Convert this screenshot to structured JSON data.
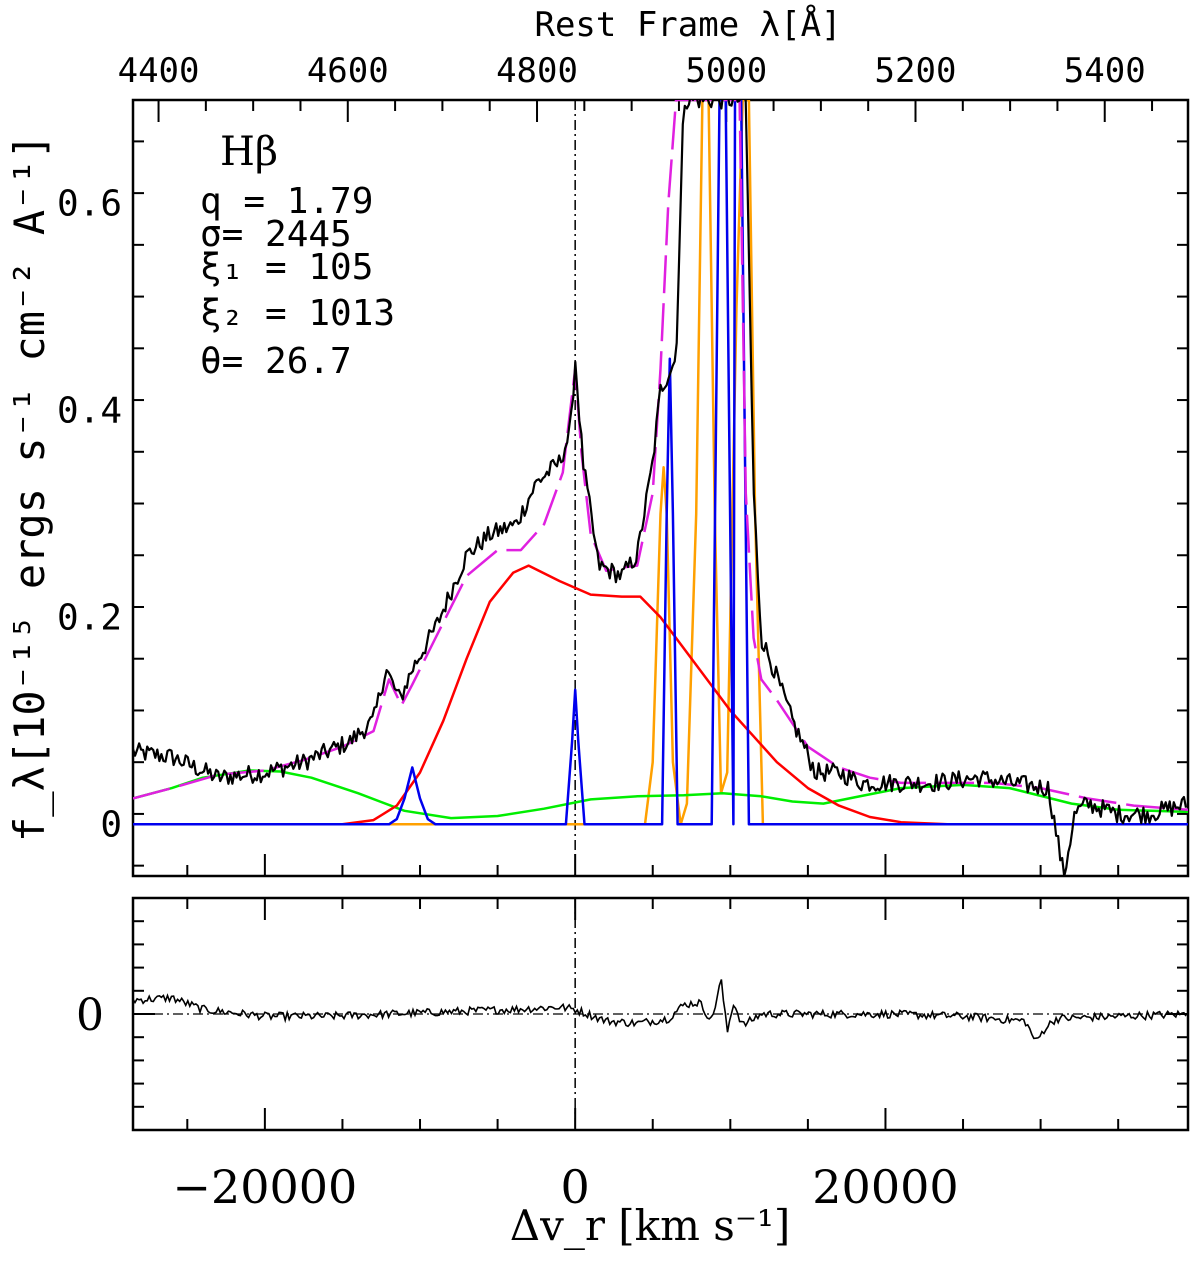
{
  "chart_data": [
    {
      "type": "line",
      "panel": "main",
      "top_axis": {
        "label": "Rest Frame  λ[Å]",
        "ticks": [
          4400,
          4600,
          4800,
          5000,
          5200,
          5400
        ],
        "range": [
          4373,
          5488
        ]
      },
      "xlabel": "Δv_r [km s⁻¹]",
      "ylabel": "f_λ[10⁻¹⁵ ergs s⁻¹ cm⁻² A⁻¹]",
      "ylim": [
        -0.05,
        0.7
      ],
      "yticks": [
        0,
        0.2,
        0.4,
        0.6
      ],
      "xlim": [
        -28500,
        39500
      ],
      "xticks": [
        -20000,
        0,
        20000
      ],
      "grid": false,
      "vertical_reference_line_x": 0,
      "annotations": {
        "line_name": "Hβ",
        "params": [
          "q  =  1.79",
          "σ=  2445",
          "ξ₁  =  105",
          "ξ₂  =  1013",
          "θ=  26.7"
        ]
      },
      "series": [
        {
          "color": "#000000",
          "style": "noisy-solid",
          "x": [
            -28500,
            -26000,
            -23000,
            -20000,
            -17500,
            -16000,
            -14500,
            -13000,
            -12200,
            -11300,
            -10500,
            -9000,
            -7000,
            -5500,
            -3800,
            -2500,
            -1000,
            -300,
            0,
            500,
            1500,
            3000,
            4000,
            5000,
            5500,
            6500,
            7000,
            7500,
            8200,
            9200,
            11000,
            11500,
            12000,
            12800,
            14000,
            15500,
            17000,
            18500,
            20000,
            23000,
            26000,
            28000,
            30500,
            31500,
            32200,
            33000,
            35000,
            37000,
            39500
          ],
          "y": [
            0.07,
            0.065,
            0.045,
            0.05,
            0.06,
            0.07,
            0.08,
            0.1,
            0.15,
            0.12,
            0.15,
            0.19,
            0.26,
            0.28,
            0.29,
            0.33,
            0.35,
            0.38,
            0.45,
            0.35,
            0.25,
            0.24,
            0.26,
            0.35,
            0.42,
            0.45,
            0.7,
            0.7,
            0.7,
            0.7,
            0.7,
            0.32,
            0.18,
            0.15,
            0.1,
            0.05,
            0.05,
            0.04,
            0.04,
            0.04,
            0.045,
            0.04,
            0.035,
            -0.05,
            0.01,
            0.02,
            0.01,
            0.01,
            0.02
          ]
        },
        {
          "color": "#e020e0",
          "style": "dashed",
          "x": [
            -28500,
            -26000,
            -23000,
            -20000,
            -17500,
            -15000,
            -13000,
            -12000,
            -11200,
            -10500,
            -9000,
            -7000,
            -5000,
            -3500,
            -2000,
            -800,
            0,
            400,
            1000,
            2000,
            3000,
            4000,
            5000,
            5500,
            6000,
            6500,
            7000,
            8000,
            9000,
            10000,
            10600,
            11000,
            11500,
            12000,
            13000,
            15000,
            17000,
            19000,
            21000,
            23000,
            25000,
            27000,
            30000,
            33000,
            36000,
            39500
          ],
          "y": [
            0.025,
            0.035,
            0.048,
            0.052,
            0.062,
            0.075,
            0.09,
            0.14,
            0.115,
            0.135,
            0.18,
            0.24,
            0.265,
            0.265,
            0.29,
            0.34,
            0.44,
            0.36,
            0.28,
            0.245,
            0.248,
            0.25,
            0.32,
            0.44,
            0.6,
            0.7,
            0.7,
            0.7,
            0.7,
            0.7,
            0.7,
            0.32,
            0.18,
            0.14,
            0.12,
            0.075,
            0.055,
            0.045,
            0.04,
            0.04,
            0.04,
            0.04,
            0.035,
            0.025,
            0.018,
            0.014
          ]
        },
        {
          "color": "#ff0000",
          "style": "solid",
          "x": [
            -28500,
            -15000,
            -13000,
            -11500,
            -10000,
            -8500,
            -7000,
            -5500,
            -4000,
            -3000,
            -1000,
            1000,
            3000,
            4200,
            5500,
            7000,
            8500,
            10000,
            11500,
            13000,
            15000,
            17000,
            19000,
            21000,
            22500,
            24000,
            39500
          ],
          "y": [
            0,
            0,
            0.004,
            0.018,
            0.05,
            0.1,
            0.16,
            0.215,
            0.243,
            0.25,
            0.235,
            0.222,
            0.22,
            0.22,
            0.2,
            0.17,
            0.14,
            0.11,
            0.085,
            0.06,
            0.035,
            0.018,
            0.007,
            0.002,
            0.001,
            0,
            0
          ]
        },
        {
          "color": "#00ee00",
          "style": "solid",
          "x": [
            -28500,
            -26000,
            -24000,
            -21000,
            -19000,
            -17000,
            -14000,
            -11000,
            -8000,
            -5000,
            -2000,
            1000,
            4000,
            7000,
            9500,
            12000,
            14000,
            16000,
            18000,
            21000,
            25000,
            28000,
            32000,
            35000,
            39500
          ],
          "y": [
            0.025,
            0.035,
            0.045,
            0.052,
            0.051,
            0.045,
            0.03,
            0.013,
            0.006,
            0.008,
            0.015,
            0.024,
            0.027,
            0.028,
            0.03,
            0.027,
            0.022,
            0.02,
            0.026,
            0.035,
            0.038,
            0.035,
            0.02,
            0.014,
            0.012
          ]
        },
        {
          "color": "#0000ee",
          "style": "solid",
          "x": [
            -28500,
            -12000,
            -11500,
            -11000,
            -10500,
            -10000,
            -9500,
            -9000,
            -600,
            -200,
            0,
            200,
            600,
            5600,
            5900,
            6100,
            6300,
            6600,
            8800,
            9300,
            9500,
            9700,
            10200,
            10300,
            10500,
            10700,
            11200,
            39500
          ],
          "y": [
            0,
            0,
            0.005,
            0.025,
            0.055,
            0.025,
            0.005,
            0,
            0,
            0.08,
            0.13,
            0.08,
            0,
            0,
            0.3,
            0.45,
            0.3,
            0,
            0,
            0.7,
            0.7,
            0.7,
            0,
            0.7,
            0.7,
            0.7,
            0,
            0
          ]
        },
        {
          "color": "#ffa000",
          "style": "solid",
          "x": [
            -28500,
            4500,
            5000,
            5500,
            5700,
            5900,
            6300,
            6800,
            7200,
            7800,
            8200,
            8600,
            9000,
            9400,
            9800,
            10400,
            10800,
            11200,
            11600,
            12100,
            39500
          ],
          "y": [
            0,
            0,
            0.06,
            0.3,
            0.345,
            0.3,
            0.06,
            0,
            0.02,
            0.3,
            0.7,
            0.7,
            0.3,
            0.03,
            0.05,
            0.5,
            0.7,
            0.7,
            0.3,
            0,
            0
          ]
        }
      ]
    },
    {
      "type": "line",
      "panel": "residuals",
      "ylim": [
        -0.05,
        0.05
      ],
      "yticks": [
        0
      ],
      "xlim": [
        -28500,
        39500
      ],
      "zero_line": true,
      "series": [
        {
          "color": "#000000",
          "style": "noisy-solid",
          "x": [
            -28500,
            -26000,
            -24000,
            -20000,
            -16000,
            -12000,
            -8000,
            -4000,
            -1000,
            0,
            2000,
            4000,
            6000,
            7000,
            8000,
            8800,
            9400,
            9800,
            10200,
            10800,
            12000,
            16000,
            20000,
            25000,
            29000,
            29700,
            30300,
            31000,
            35000,
            39500
          ],
          "y": [
            0.006,
            0.007,
            0.002,
            -0.001,
            -0.001,
            0.0,
            0.001,
            0.002,
            0.003,
            0.002,
            -0.003,
            -0.004,
            -0.002,
            0.004,
            0.005,
            -0.003,
            0.015,
            -0.008,
            0.005,
            -0.005,
            0.0,
            0.0,
            0.0,
            -0.001,
            -0.003,
            -0.012,
            -0.006,
            -0.002,
            -0.001,
            0.0
          ]
        }
      ]
    }
  ]
}
